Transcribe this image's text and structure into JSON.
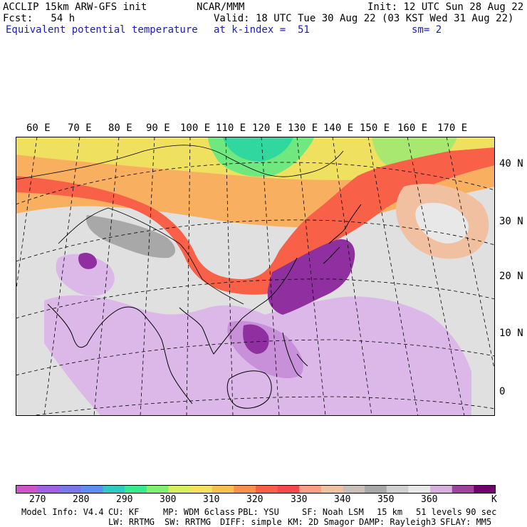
{
  "header": {
    "model": "ACCLIP 15km ARW-GFS init",
    "org": "NCAR/MMM",
    "init": "Init: 12 UTC Sun 28 Aug 22",
    "fcst": "Fcst:   54 h",
    "valid": "Valid: 18 UTC Tue 30 Aug 22 (03 KST Wed 31 Aug 22)",
    "field": "Equivalent potential temperature",
    "level": "at k-index =  51",
    "smooth": "sm= 2"
  },
  "map": {
    "lon_labels": [
      "60 E",
      "70 E",
      "80 E",
      "90 E",
      "100 E",
      "110 E",
      "120 E",
      "130 E",
      "140 E",
      "150 E",
      "160 E",
      "170 E"
    ],
    "lat_labels": [
      "40 N",
      "30 N",
      "20 N",
      "10 N",
      "0"
    ]
  },
  "colorbar": {
    "colors": [
      "#cc55cc",
      "#a060e0",
      "#7a78e8",
      "#5a90f0",
      "#30c8c0",
      "#3ae890",
      "#80f070",
      "#d8f060",
      "#f8e060",
      "#f8c050",
      "#f89050",
      "#f86048",
      "#f84848",
      "#f8a080",
      "#f0c0a0",
      "#c8c0b8",
      "#a8a8a8",
      "#d0d0d0",
      "#e8e8e8",
      "#d8b0e0",
      "#a040a0",
      "#700070"
    ],
    "labels": [
      "270",
      "280",
      "290",
      "300",
      "310",
      "320",
      "330",
      "340",
      "350",
      "360"
    ],
    "unit": "K"
  },
  "footer": {
    "line1": [
      "Model Info: V4.4",
      "CU: KF",
      "MP: WDM 6class",
      "PBL: YSU",
      "SF: Noah LSM",
      "15 km",
      "51 levels",
      "90 sec"
    ],
    "line2": [
      "LW: RRTMG",
      "SW: RRTMG",
      "DIFF: simple",
      "KM: 2D Smagor",
      "DAMP: Rayleigh3",
      "SFLAY: MM5"
    ]
  }
}
